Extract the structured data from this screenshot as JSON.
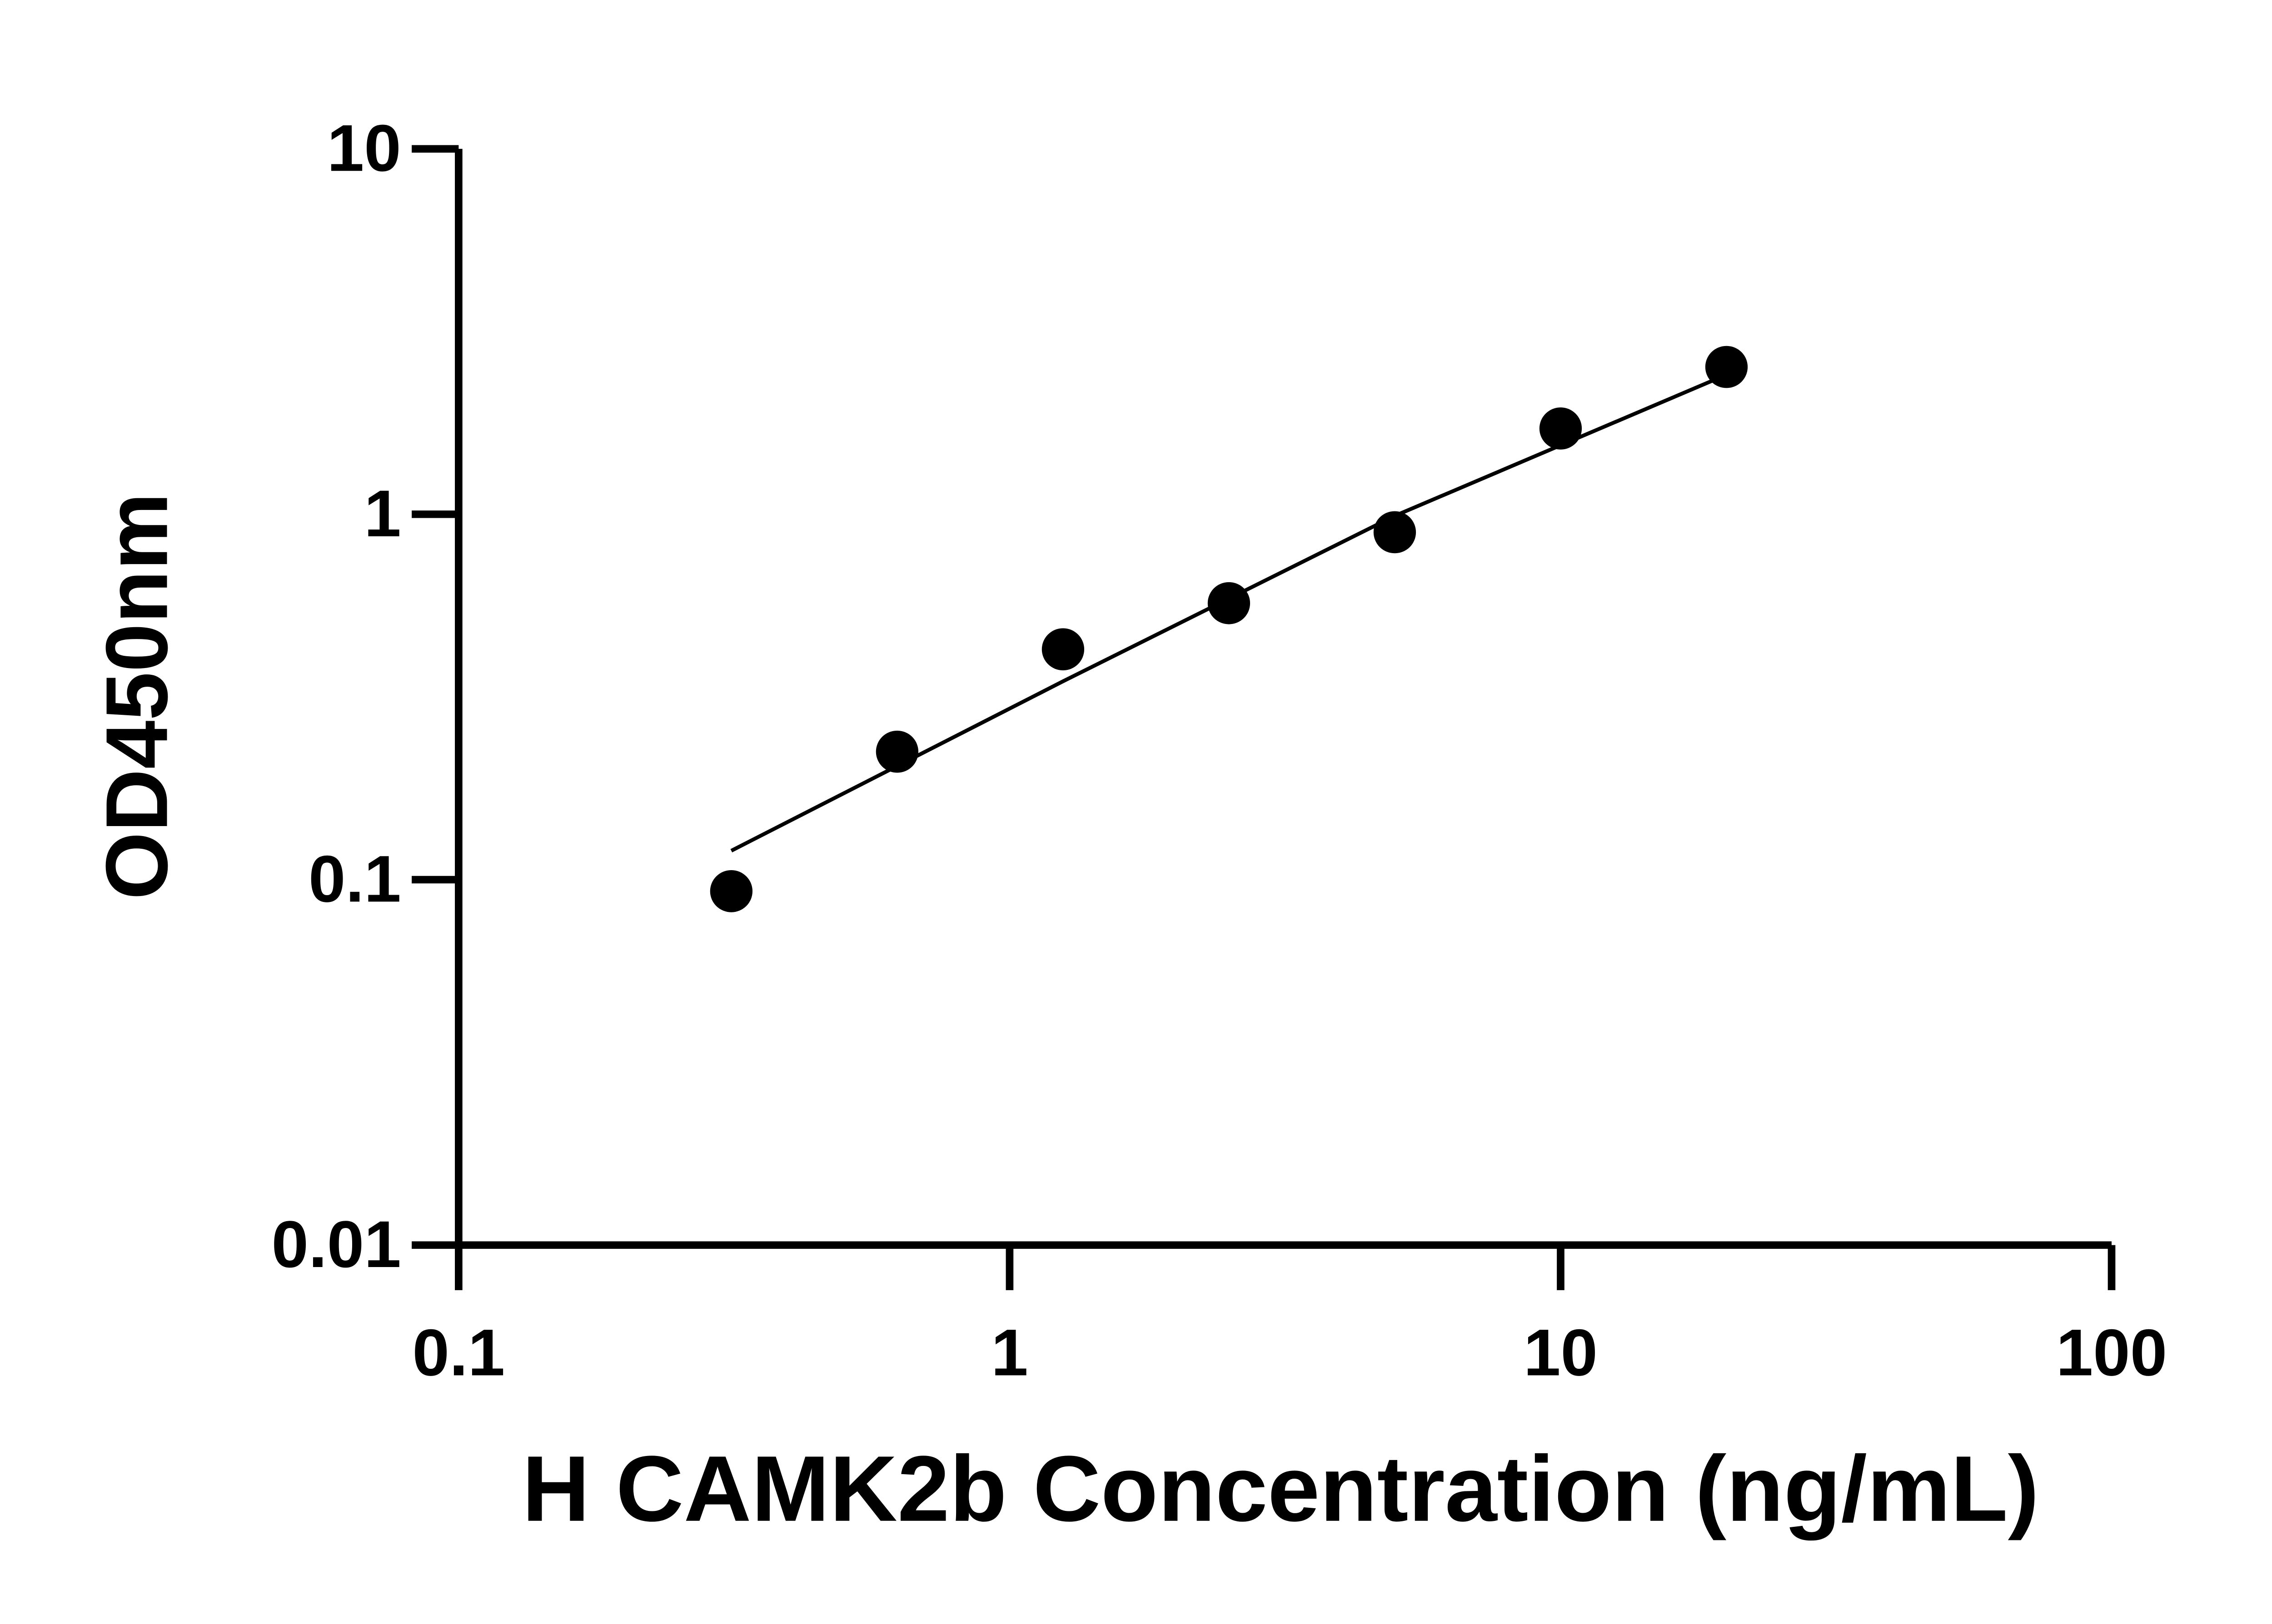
{
  "chart_data": {
    "type": "scatter",
    "x_label": "H CAMK2b Concentration (ng/mL)",
    "y_label": "OD450nm",
    "xscale": "log",
    "yscale": "log",
    "xlim": [
      0.1,
      100
    ],
    "ylim": [
      0.01,
      10
    ],
    "xticks": [
      0.1,
      1,
      10,
      100
    ],
    "yticks": [
      0.01,
      0.1,
      1,
      10
    ],
    "series": [
      {
        "type": "scatter",
        "color": "#000000",
        "x": [
          0.3125,
          0.625,
          1.25,
          2.5,
          5,
          10,
          20
        ],
        "values": [
          0.093,
          0.224,
          0.427,
          0.571,
          0.893,
          1.717,
          2.53
        ]
      },
      {
        "type": "line",
        "color": "#000000",
        "x": [
          0.3125,
          1.25,
          5,
          20
        ],
        "values": [
          0.12,
          0.349,
          0.99,
          2.41
        ]
      }
    ]
  }
}
